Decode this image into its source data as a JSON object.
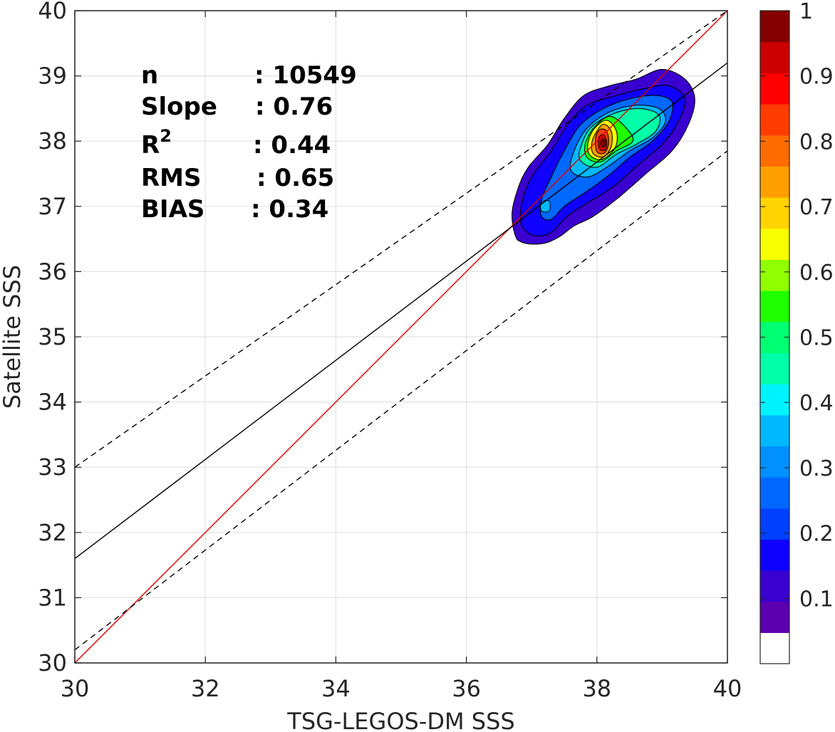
{
  "chart_data": {
    "type": "contour-density-scatter",
    "xlabel": "TSG-LEGOS-DM SSS",
    "ylabel": "Satellite SSS",
    "xlim": [
      30,
      40
    ],
    "ylim": [
      30,
      40
    ],
    "xticks": [
      "30",
      "32",
      "34",
      "36",
      "38",
      "40"
    ],
    "yticks": [
      "30",
      "31",
      "32",
      "33",
      "34",
      "35",
      "36",
      "37",
      "38",
      "39",
      "40"
    ],
    "grid": true,
    "stats": [
      {
        "label": "n",
        "value": ": 10549"
      },
      {
        "label": "Slope",
        "value": ": 0.76"
      },
      {
        "label": "R",
        "sup": "2",
        "value": ": 0.44"
      },
      {
        "label": "RMS",
        "value": ": 0.65"
      },
      {
        "label": "BIAS",
        "value": ": 0.34"
      }
    ],
    "lines": [
      {
        "role": "one-to-one",
        "color": "#dd0000",
        "style": "solid",
        "points": [
          [
            30,
            30
          ],
          [
            40,
            40
          ]
        ]
      },
      {
        "role": "regression",
        "color": "#000000",
        "style": "solid",
        "points": [
          [
            30,
            31.6
          ],
          [
            40,
            39.2
          ]
        ]
      },
      {
        "role": "upper-bound",
        "color": "#000000",
        "style": "dashed",
        "points": [
          [
            30,
            33.0
          ],
          [
            40,
            40.0
          ]
        ]
      },
      {
        "role": "lower-bound",
        "color": "#000000",
        "style": "dashed",
        "points": [
          [
            30,
            30.2
          ],
          [
            40,
            37.85
          ]
        ]
      }
    ],
    "density_peak": {
      "x": 38.1,
      "y": 38.0,
      "value": 1.0
    },
    "colorbar": {
      "range": [
        0,
        1
      ],
      "tick_values": [
        0.1,
        0.2,
        0.3,
        0.4,
        0.5,
        0.6,
        0.7,
        0.8,
        0.9,
        1.0
      ],
      "tick_labels": [
        "0.1",
        "0.2",
        "0.3",
        "0.4",
        "0.5",
        "0.6",
        "0.7",
        "0.8",
        "0.9",
        "1"
      ],
      "colors": [
        "#ffffff",
        "#5d00b0",
        "#3a00d0",
        "#0f00ff",
        "#0040ff",
        "#0068ff",
        "#0090ff",
        "#00b8ff",
        "#00f4ff",
        "#00ffa8",
        "#00ff72",
        "#20ff00",
        "#90ff00",
        "#f8ff00",
        "#ffd400",
        "#ffa000",
        "#ff6c00",
        "#ff3c00",
        "#ff0000",
        "#cc0000",
        "#850000"
      ]
    },
    "contours": [
      {
        "level": 0.05,
        "color": "#3a00d0",
        "points": [
          [
            36.75,
            36.55
          ],
          [
            36.85,
            36.45
          ],
          [
            37.05,
            36.42
          ],
          [
            37.25,
            36.45
          ],
          [
            37.45,
            36.55
          ],
          [
            37.65,
            36.7
          ],
          [
            37.95,
            36.85
          ],
          [
            38.35,
            37.15
          ],
          [
            38.75,
            37.5
          ],
          [
            39.15,
            37.85
          ],
          [
            39.4,
            38.25
          ],
          [
            39.5,
            38.65
          ],
          [
            39.35,
            38.95
          ],
          [
            39.0,
            39.1
          ],
          [
            38.6,
            38.95
          ],
          [
            38.2,
            38.85
          ],
          [
            37.8,
            38.7
          ],
          [
            37.5,
            38.35
          ],
          [
            37.25,
            37.95
          ],
          [
            36.95,
            37.6
          ],
          [
            36.8,
            37.3
          ],
          [
            36.7,
            36.9
          ]
        ]
      },
      {
        "level": 0.1,
        "color": "#0f00ff",
        "points": [
          [
            36.85,
            36.7
          ],
          [
            37.05,
            36.55
          ],
          [
            37.3,
            36.6
          ],
          [
            37.55,
            36.85
          ],
          [
            37.85,
            37.05
          ],
          [
            38.25,
            37.3
          ],
          [
            38.65,
            37.65
          ],
          [
            39.0,
            37.95
          ],
          [
            39.25,
            38.3
          ],
          [
            39.35,
            38.65
          ],
          [
            39.1,
            38.85
          ],
          [
            38.7,
            38.8
          ],
          [
            38.3,
            38.7
          ],
          [
            37.85,
            38.55
          ],
          [
            37.55,
            38.25
          ],
          [
            37.3,
            37.85
          ],
          [
            37.0,
            37.45
          ],
          [
            36.85,
            37.05
          ]
        ]
      },
      {
        "level": 0.2,
        "color": "#0068ff",
        "points": [
          [
            37.15,
            36.85
          ],
          [
            37.3,
            36.8
          ],
          [
            37.5,
            37.0
          ],
          [
            37.8,
            37.2
          ],
          [
            38.15,
            37.45
          ],
          [
            38.5,
            37.75
          ],
          [
            38.85,
            38.0
          ],
          [
            39.1,
            38.3
          ],
          [
            39.15,
            38.6
          ],
          [
            38.9,
            38.7
          ],
          [
            38.5,
            38.65
          ],
          [
            38.1,
            38.5
          ],
          [
            37.75,
            38.25
          ],
          [
            37.5,
            37.85
          ],
          [
            37.3,
            37.45
          ],
          [
            37.15,
            37.1
          ]
        ]
      },
      {
        "level": 0.3,
        "color": "#00b8ff",
        "points": [
          [
            37.6,
            37.55
          ],
          [
            37.85,
            37.45
          ],
          [
            38.15,
            37.6
          ],
          [
            38.5,
            37.85
          ],
          [
            38.85,
            38.05
          ],
          [
            39.05,
            38.3
          ],
          [
            38.95,
            38.5
          ],
          [
            38.6,
            38.55
          ],
          [
            38.2,
            38.45
          ],
          [
            37.85,
            38.2
          ],
          [
            37.65,
            37.85
          ]
        ]
      },
      {
        "level": 0.4,
        "color": "#00ffa8",
        "points": [
          [
            37.75,
            37.7
          ],
          [
            38.0,
            37.6
          ],
          [
            38.3,
            37.8
          ],
          [
            38.6,
            37.95
          ],
          [
            38.9,
            38.15
          ],
          [
            38.95,
            38.4
          ],
          [
            38.65,
            38.5
          ],
          [
            38.25,
            38.42
          ],
          [
            37.9,
            38.2
          ],
          [
            37.75,
            37.9
          ]
        ]
      },
      {
        "level": 0.5,
        "color": "#20ff00",
        "points": [
          [
            37.85,
            37.75
          ],
          [
            38.05,
            37.68
          ],
          [
            38.3,
            37.85
          ],
          [
            38.55,
            38.0
          ],
          [
            38.45,
            38.2
          ],
          [
            38.2,
            38.38
          ],
          [
            37.95,
            38.2
          ],
          [
            37.82,
            37.95
          ]
        ]
      },
      {
        "level": 0.6,
        "color": "#f8ff00",
        "points": [
          [
            37.9,
            37.78
          ],
          [
            38.08,
            37.72
          ],
          [
            38.28,
            37.9
          ],
          [
            38.3,
            38.15
          ],
          [
            38.15,
            38.32
          ],
          [
            37.95,
            38.18
          ],
          [
            37.86,
            37.95
          ]
        ]
      },
      {
        "level": 0.7,
        "color": "#ffa000",
        "points": [
          [
            37.95,
            37.8
          ],
          [
            38.1,
            37.76
          ],
          [
            38.22,
            37.92
          ],
          [
            38.22,
            38.15
          ],
          [
            38.1,
            38.26
          ],
          [
            37.98,
            38.12
          ],
          [
            37.92,
            37.95
          ]
        ]
      },
      {
        "level": 0.8,
        "color": "#ff3c00",
        "points": [
          [
            38.0,
            37.84
          ],
          [
            38.12,
            37.82
          ],
          [
            38.18,
            37.97
          ],
          [
            38.15,
            38.15
          ],
          [
            38.05,
            38.18
          ],
          [
            37.98,
            38.05
          ]
        ]
      },
      {
        "level": 0.9,
        "color": "#cc0000",
        "points": [
          [
            38.04,
            37.88
          ],
          [
            38.13,
            37.87
          ],
          [
            38.15,
            38.0
          ],
          [
            38.1,
            38.1
          ],
          [
            38.03,
            38.05
          ]
        ]
      },
      {
        "level": 0.95,
        "color": "#850000",
        "points": [
          [
            38.07,
            37.92
          ],
          [
            38.12,
            37.93
          ],
          [
            38.12,
            38.02
          ],
          [
            38.07,
            38.02
          ]
        ]
      }
    ],
    "secondary_maxima": [
      {
        "level": 0.3,
        "color": "#00b8ff",
        "points": [
          [
            37.15,
            36.93
          ],
          [
            37.27,
            36.93
          ],
          [
            37.27,
            37.08
          ],
          [
            37.15,
            37.06
          ]
        ]
      }
    ]
  }
}
